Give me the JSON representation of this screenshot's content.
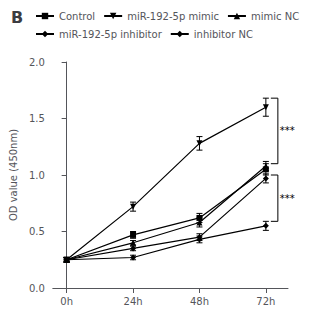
{
  "chart_data": {
    "type": "line",
    "title": "B",
    "y_label": "OD value (450nm)",
    "x": [
      0,
      24,
      48,
      72
    ],
    "xlim": [
      -5,
      80
    ],
    "xticks": [
      {
        "value": 0,
        "label": "0h"
      },
      {
        "value": 24,
        "label": "24h"
      },
      {
        "value": 48,
        "label": "48h"
      },
      {
        "value": 72,
        "label": "72h"
      }
    ],
    "ylim": [
      0.0,
      2.0
    ],
    "yticks": [
      {
        "value": 0.0,
        "label": "0.0"
      },
      0.5,
      {
        "value": 1.0,
        "label": "1.0"
      },
      1.5,
      {
        "value": 2.0,
        "label": "2.0"
      }
    ],
    "grid": false,
    "legend": "top",
    "series": [
      {
        "name": "Control",
        "color": "#000000",
        "marker": "square",
        "values": [
          0.25,
          0.47,
          0.62,
          1.05
        ],
        "errors": [
          0.02,
          0.03,
          0.04,
          0.05
        ]
      },
      {
        "name": "miR-192-5p mimic",
        "color": "#000000",
        "marker": "triangle-down",
        "values": [
          0.25,
          0.72,
          1.28,
          1.6
        ],
        "errors": [
          0.02,
          0.04,
          0.06,
          0.08
        ]
      },
      {
        "name": "mimic NC",
        "color": "#000000",
        "marker": "triangle-up",
        "values": [
          0.25,
          0.4,
          0.58,
          1.08
        ],
        "errors": [
          0.02,
          0.02,
          0.04,
          0.04
        ]
      },
      {
        "name": "miR-192-5p inhibitor",
        "color": "#000000",
        "marker": "diamond",
        "values": [
          0.25,
          0.27,
          0.43,
          0.55
        ],
        "errors": [
          0.02,
          0.02,
          0.03,
          0.04
        ]
      },
      {
        "name": "inhibitor NC",
        "color": "#000000",
        "marker": "diamond",
        "values": [
          0.25,
          0.35,
          0.45,
          0.97
        ],
        "errors": [
          0.02,
          0.02,
          0.03,
          0.04
        ]
      }
    ],
    "annotations": [
      {
        "text": "***",
        "x": 72,
        "y": [
          1.1,
          1.68
        ]
      },
      {
        "text": "***",
        "x": 72,
        "y": [
          0.59,
          1.0
        ]
      }
    ]
  }
}
